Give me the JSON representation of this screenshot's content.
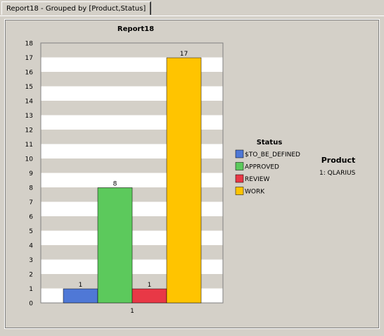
{
  "tab": {
    "label": "Report18 - Grouped by [Product,Status]"
  },
  "chart_data": {
    "type": "bar",
    "title": "Report18",
    "categories": [
      "1"
    ],
    "series": [
      {
        "name": "$TO_BE_DEFINED",
        "values": [
          1
        ],
        "color": "#4f78d6"
      },
      {
        "name": "APPROVED",
        "values": [
          8
        ],
        "color": "#5cc95c"
      },
      {
        "name": "REVIEW",
        "values": [
          1
        ],
        "color": "#e83846"
      },
      {
        "name": "WORK",
        "values": [
          17
        ],
        "color": "#ffc400"
      }
    ],
    "ylim": [
      0,
      18
    ],
    "yticks": [
      "0",
      "1",
      "2",
      "3",
      "4",
      "5",
      "6",
      "7",
      "8",
      "9",
      "10",
      "11",
      "12",
      "13",
      "14",
      "15",
      "16",
      "17",
      "18"
    ],
    "grid": "alternating horizontal bands",
    "legend": {
      "title": "Status",
      "placement": "right"
    }
  },
  "product_panel": {
    "title": "Product",
    "items": [
      "1:  QLARIUS"
    ]
  }
}
